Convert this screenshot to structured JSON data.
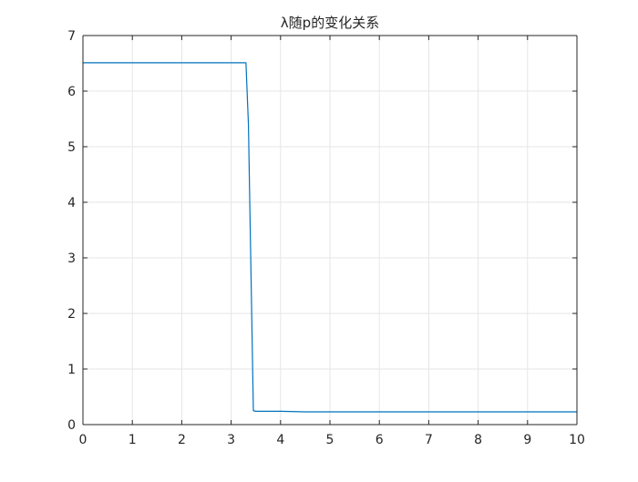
{
  "chart_data": {
    "type": "line",
    "title": "λ随p的变化关系",
    "xlabel": "",
    "ylabel": "",
    "xlim": [
      0,
      10
    ],
    "ylim": [
      0,
      7
    ],
    "xticks": [
      0,
      1,
      2,
      3,
      4,
      5,
      6,
      7,
      8,
      9,
      10
    ],
    "yticks": [
      0,
      1,
      2,
      3,
      4,
      5,
      6,
      7
    ],
    "grid": true,
    "box": true,
    "colors": {
      "line": "#0072BD",
      "grid": "#e6e6e6",
      "axis": "#262626"
    },
    "series": [
      {
        "x": [
          0,
          0.5,
          1,
          1.5,
          2,
          2.5,
          3,
          3.2,
          3.3,
          3.35,
          3.45,
          3.5,
          4,
          4.5,
          5,
          6,
          7,
          8,
          9,
          10
        ],
        "y": [
          6.51,
          6.51,
          6.51,
          6.51,
          6.51,
          6.51,
          6.51,
          6.51,
          6.51,
          5.4,
          0.25,
          0.24,
          0.24,
          0.23,
          0.23,
          0.23,
          0.23,
          0.23,
          0.23,
          0.23
        ]
      }
    ]
  }
}
